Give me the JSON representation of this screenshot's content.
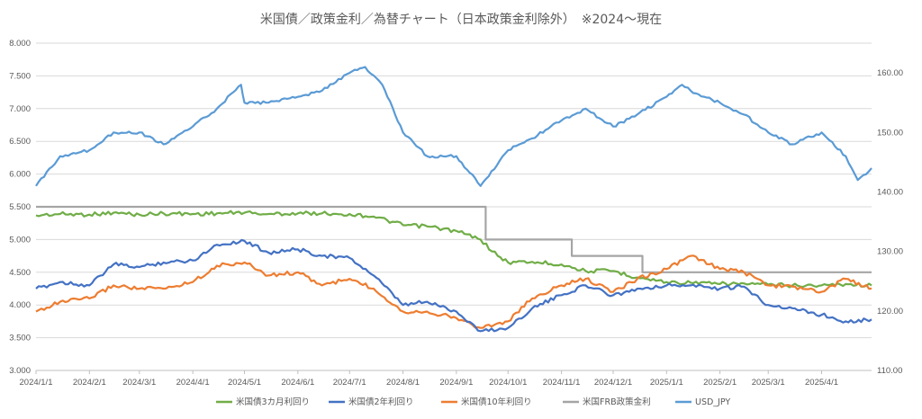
{
  "chart_data": {
    "type": "line",
    "title": "米国債／政策金利／為替チャート（日本政策金利除外）　※2024～現在",
    "legend_position": "bottom",
    "grid": true,
    "x_labels": [
      "2024/1/1",
      "2024/2/1",
      "2024/3/1",
      "2024/4/1",
      "2024/5/1",
      "2024/6/1",
      "2024/7/1",
      "2024/8/1",
      "2024/9/1",
      "2024/10/1",
      "2024/11/1",
      "2024/12/1",
      "2025/1/1",
      "2025/2/1",
      "2025/3/1",
      "2025/4/1"
    ],
    "x_range": [
      "2024/1/1",
      "2025/4/30"
    ],
    "y_left": {
      "min": 3.0,
      "max": 8.0,
      "ticks": [
        "3.000",
        "3.500",
        "4.000",
        "4.500",
        "5.000",
        "5.500",
        "6.000",
        "6.500",
        "7.000",
        "7.500",
        "8.000"
      ]
    },
    "y_right": {
      "min": 110,
      "max": 165,
      "ticks": [
        "110.00",
        "120.00",
        "130.00",
        "140.00",
        "150.00",
        "160.00"
      ]
    },
    "series": [
      {
        "name": "米国債3カ月利回り",
        "color": "#70ad47",
        "axis": "left",
        "x": [
          "2024/1/1",
          "2024/1/15",
          "2024/2/1",
          "2024/2/15",
          "2024/3/1",
          "2024/3/15",
          "2024/4/1",
          "2024/4/15",
          "2024/5/1",
          "2024/5/15",
          "2024/6/1",
          "2024/6/15",
          "2024/7/1",
          "2024/7/15",
          "2024/8/1",
          "2024/8/15",
          "2024/9/1",
          "2024/9/15",
          "2024/9/25",
          "2024/10/1",
          "2024/10/15",
          "2024/11/1",
          "2024/11/15",
          "2024/12/1",
          "2024/12/15",
          "2025/1/1",
          "2025/1/15",
          "2025/2/1",
          "2025/2/15",
          "2025/3/1",
          "2025/3/15",
          "2025/4/1",
          "2025/4/15",
          "2025/4/30"
        ],
        "y": [
          5.37,
          5.39,
          5.38,
          5.41,
          5.38,
          5.4,
          5.39,
          5.4,
          5.41,
          5.39,
          5.4,
          5.4,
          5.39,
          5.35,
          5.22,
          5.2,
          5.13,
          5.0,
          4.75,
          4.65,
          4.66,
          4.62,
          4.52,
          4.52,
          4.42,
          4.35,
          4.34,
          4.32,
          4.33,
          4.31,
          4.3,
          4.3,
          4.32,
          4.3
        ]
      },
      {
        "name": "米国債2年利回り",
        "color": "#4472c4",
        "axis": "left",
        "x": [
          "2024/1/1",
          "2024/1/15",
          "2024/2/1",
          "2024/2/15",
          "2024/3/1",
          "2024/3/15",
          "2024/4/1",
          "2024/4/15",
          "2024/5/1",
          "2024/5/15",
          "2024/6/1",
          "2024/6/15",
          "2024/7/1",
          "2024/7/15",
          "2024/8/1",
          "2024/8/15",
          "2024/9/1",
          "2024/9/15",
          "2024/10/1",
          "2024/10/15",
          "2024/11/1",
          "2024/11/15",
          "2024/12/1",
          "2024/12/15",
          "2025/1/1",
          "2025/1/15",
          "2025/2/1",
          "2025/2/15",
          "2025/3/1",
          "2025/3/15",
          "2025/4/1",
          "2025/4/15",
          "2025/4/30"
        ],
        "y": [
          4.25,
          4.35,
          4.3,
          4.62,
          4.58,
          4.65,
          4.68,
          4.92,
          4.98,
          4.8,
          4.85,
          4.75,
          4.72,
          4.45,
          4.0,
          4.05,
          3.9,
          3.6,
          3.65,
          3.95,
          4.15,
          4.3,
          4.15,
          4.25,
          4.3,
          4.3,
          4.25,
          4.28,
          4.0,
          3.95,
          3.85,
          3.75,
          3.78
        ]
      },
      {
        "name": "米国債10年利回り",
        "color": "#ed7d31",
        "axis": "left",
        "x": [
          "2024/1/1",
          "2024/1/15",
          "2024/2/1",
          "2024/2/15",
          "2024/3/1",
          "2024/3/15",
          "2024/4/1",
          "2024/4/15",
          "2024/5/1",
          "2024/5/15",
          "2024/6/1",
          "2024/6/15",
          "2024/7/1",
          "2024/7/15",
          "2024/8/1",
          "2024/8/15",
          "2024/9/1",
          "2024/9/15",
          "2024/10/1",
          "2024/10/15",
          "2024/11/1",
          "2024/11/15",
          "2024/12/1",
          "2024/12/15",
          "2025/1/1",
          "2025/1/15",
          "2025/2/1",
          "2025/2/15",
          "2025/3/1",
          "2025/3/15",
          "2025/4/1",
          "2025/4/15",
          "2025/4/30"
        ],
        "y": [
          3.9,
          4.05,
          4.1,
          4.3,
          4.25,
          4.25,
          4.35,
          4.6,
          4.65,
          4.45,
          4.5,
          4.3,
          4.4,
          4.25,
          3.9,
          3.9,
          3.8,
          3.65,
          3.75,
          4.1,
          4.3,
          4.4,
          4.2,
          4.4,
          4.55,
          4.75,
          4.55,
          4.5,
          4.3,
          4.28,
          4.2,
          4.4,
          4.25
        ]
      },
      {
        "name": "米国FRB政策金利",
        "color": "#a5a5a5",
        "axis": "left",
        "step": true,
        "x": [
          "2024/1/1",
          "2024/9/18",
          "2024/11/7",
          "2024/12/18",
          "2025/4/30"
        ],
        "y": [
          5.5,
          5.0,
          4.75,
          4.5,
          4.5
        ]
      },
      {
        "name": "USD_JPY",
        "color": "#5b9bd5",
        "axis": "right",
        "x": [
          "2024/1/1",
          "2024/1/15",
          "2024/2/1",
          "2024/2/15",
          "2024/3/1",
          "2024/3/15",
          "2024/4/1",
          "2024/4/15",
          "2024/4/29",
          "2024/5/1",
          "2024/5/15",
          "2024/6/1",
          "2024/6/15",
          "2024/7/1",
          "2024/7/10",
          "2024/7/20",
          "2024/8/1",
          "2024/8/15",
          "2024/9/1",
          "2024/9/15",
          "2024/10/1",
          "2024/10/15",
          "2024/11/1",
          "2024/11/15",
          "2024/12/1",
          "2024/12/15",
          "2025/1/1",
          "2025/1/10",
          "2025/1/15",
          "2025/2/1",
          "2025/2/15",
          "2025/3/1",
          "2025/3/15",
          "2025/4/1",
          "2025/4/15",
          "2025/4/22",
          "2025/4/30"
        ],
        "y": [
          141,
          146,
          147,
          150,
          150,
          148,
          151,
          154,
          158,
          155,
          155,
          156,
          157,
          160,
          161,
          158,
          150,
          146,
          146,
          141,
          147,
          149,
          152,
          154,
          151,
          153,
          156,
          158,
          157,
          155,
          153,
          150,
          148,
          150,
          146,
          142,
          144
        ]
      }
    ]
  }
}
